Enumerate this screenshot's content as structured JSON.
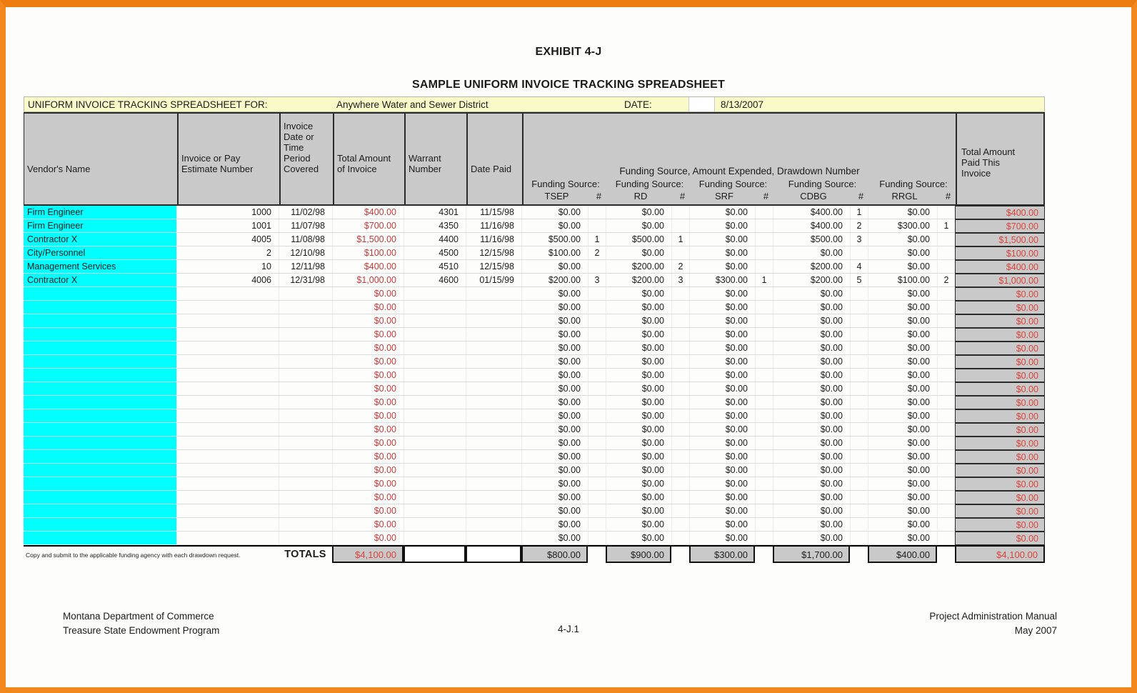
{
  "page": {
    "exhibit_title": "EXHIBIT 4-J",
    "sheet_title": "SAMPLE UNIFORM INVOICE TRACKING SPREADSHEET"
  },
  "colors": {
    "frame_orange": "#F2871E",
    "info_bar_yellow": "#FAFAC8",
    "header_gray": "#C9C9C9",
    "vendor_cyan": "#00FFFF",
    "amount_red": "#C13B3B",
    "paid_red": "#DD4239"
  },
  "info_bar": {
    "label": "UNIFORM INVOICE TRACKING SPREADSHEET FOR:",
    "entity": "Anywhere Water and Sewer District",
    "date_label": "DATE:",
    "date_value": "8/13/2007"
  },
  "table": {
    "columns": {
      "vendor": "Vendor's Name",
      "invoice": "Invoice or Pay\nEstimate Number",
      "period": "Invoice\nDate or\nTime\nPeriod\nCovered",
      "amount": "Total Amount\nof Invoice",
      "warrant": "Warrant\nNumber",
      "paid": "Date Paid",
      "total_paid": "Total Amount\nPaid This\nInvoice"
    },
    "funding_group_label": "Funding Source, Amount Expended, Drawdown Number",
    "funding_source_label": "Funding Source:",
    "hash_label": "#",
    "funding_sources": [
      "TSEP",
      "RD",
      "SRF",
      "CDBG",
      "RRGL"
    ],
    "rows": [
      {
        "vendor": "Firm Engineer",
        "inv": "1000",
        "date": "11/02/98",
        "amount": "$400.00",
        "warrant": "4301",
        "paid": "11/15/98",
        "tsep": "$0.00",
        "tsep_n": "",
        "rd": "$0.00",
        "rd_n": "",
        "srf": "$0.00",
        "srf_n": "",
        "cdbg": "$400.00",
        "cdbg_n": "1",
        "rrgl": "$0.00",
        "rrgl_n": "",
        "total": "$400.00"
      },
      {
        "vendor": "Firm Engineer",
        "inv": "1001",
        "date": "11/07/98",
        "amount": "$700.00",
        "warrant": "4350",
        "paid": "11/16/98",
        "tsep": "$0.00",
        "tsep_n": "",
        "rd": "$0.00",
        "rd_n": "",
        "srf": "$0.00",
        "srf_n": "",
        "cdbg": "$400.00",
        "cdbg_n": "2",
        "rrgl": "$300.00",
        "rrgl_n": "1",
        "total": "$700.00"
      },
      {
        "vendor": "Contractor X",
        "inv": "4005",
        "date": "11/08/98",
        "amount": "$1,500.00",
        "warrant": "4400",
        "paid": "11/16/98",
        "tsep": "$500.00",
        "tsep_n": "1",
        "rd": "$500.00",
        "rd_n": "1",
        "srf": "$0.00",
        "srf_n": "",
        "cdbg": "$500.00",
        "cdbg_n": "3",
        "rrgl": "$0.00",
        "rrgl_n": "",
        "total": "$1,500.00"
      },
      {
        "vendor": "City/Personnel",
        "inv": "2",
        "date": "12/10/98",
        "amount": "$100.00",
        "warrant": "4500",
        "paid": "12/15/98",
        "tsep": "$100.00",
        "tsep_n": "2",
        "rd": "$0.00",
        "rd_n": "",
        "srf": "$0.00",
        "srf_n": "",
        "cdbg": "$0.00",
        "cdbg_n": "",
        "rrgl": "$0.00",
        "rrgl_n": "",
        "total": "$100.00"
      },
      {
        "vendor": "Management Services",
        "inv": "10",
        "date": "12/11/98",
        "amount": "$400.00",
        "warrant": "4510",
        "paid": "12/15/98",
        "tsep": "$0.00",
        "tsep_n": "",
        "rd": "$200.00",
        "rd_n": "2",
        "srf": "$0.00",
        "srf_n": "",
        "cdbg": "$200.00",
        "cdbg_n": "4",
        "rrgl": "$0.00",
        "rrgl_n": "",
        "total": "$400.00"
      },
      {
        "vendor": "Contractor X",
        "inv": "4006",
        "date": "12/31/98",
        "amount": "$1,000.00",
        "warrant": "4600",
        "paid": "01/15/99",
        "tsep": "$200.00",
        "tsep_n": "3",
        "rd": "$200.00",
        "rd_n": "3",
        "srf": "$300.00",
        "srf_n": "1",
        "cdbg": "$200.00",
        "cdbg_n": "5",
        "rrgl": "$100.00",
        "rrgl_n": "2",
        "total": "$1,000.00"
      }
    ],
    "empty_row": {
      "vendor": "",
      "inv": "",
      "date": "",
      "amount": "$0.00",
      "warrant": "",
      "paid": "",
      "tsep": "$0.00",
      "tsep_n": "",
      "rd": "$0.00",
      "rd_n": "",
      "srf": "$0.00",
      "srf_n": "",
      "cdbg": "$0.00",
      "cdbg_n": "",
      "rrgl": "$0.00",
      "rrgl_n": "",
      "total": "$0.00"
    },
    "empty_row_count": 19,
    "totals": {
      "note": "Copy and submit to the applicable funding agency with each drawdown request.",
      "label": "TOTALS",
      "amount": "$4,100.00",
      "tsep": "$800.00",
      "rd": "$900.00",
      "srf": "$300.00",
      "cdbg": "$1,700.00",
      "rrgl": "$400.00",
      "total": "$4,100.00"
    }
  },
  "footer": {
    "org_line1": "Montana Department of Commerce",
    "org_line2": "Treasure State Endowment Program",
    "page_number": "4-J.1",
    "manual_line1": "Project Administration Manual",
    "manual_line2": "May 2007"
  }
}
